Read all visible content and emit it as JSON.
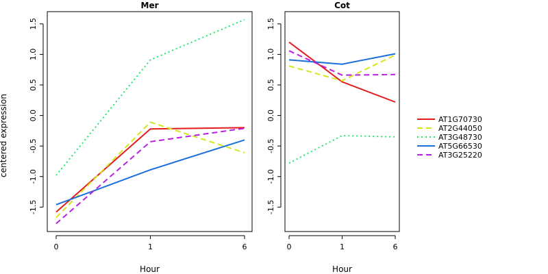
{
  "figure": {
    "ylabel": "centered expression",
    "xlabel": "Hour"
  },
  "legend": {
    "placement": "right",
    "items": [
      "AT1G70730",
      "AT2G44050",
      "AT3G48730",
      "AT5G66530",
      "AT3G25220"
    ]
  },
  "chart_data": [
    {
      "type": "line",
      "title": "Mer",
      "xlabel": "Hour",
      "ylabel": "centered expression",
      "categories": [
        "0",
        "1",
        "6"
      ],
      "ylim": [
        -1.9,
        1.7
      ],
      "yticks": [
        -1.5,
        -1.0,
        -0.5,
        0.0,
        0.5,
        1.0,
        1.5
      ],
      "ytick_labels": [
        "-1.5",
        "-1.0",
        "-0.5",
        "0.0",
        "0.5",
        "1.0",
        "1.5"
      ],
      "series": [
        {
          "name": "AT1G70730",
          "color": "#e41a1c",
          "dash": "solid",
          "values": [
            -1.58,
            -0.22,
            -0.2
          ]
        },
        {
          "name": "AT2G44050",
          "color": "#d4e61a",
          "dash": "dashed",
          "values": [
            -1.67,
            -0.11,
            -0.61
          ]
        },
        {
          "name": "AT3G48730",
          "color": "#1ee66a",
          "dash": "dotted",
          "values": [
            -0.98,
            0.91,
            1.57
          ]
        },
        {
          "name": "AT5G66530",
          "color": "#1a6edc",
          "dash": "solid",
          "values": [
            -1.46,
            -0.89,
            -0.4
          ]
        },
        {
          "name": "AT3G25220",
          "color": "#b91ee1",
          "dash": "dashed",
          "values": [
            -1.77,
            -0.43,
            -0.21
          ]
        }
      ]
    },
    {
      "type": "line",
      "title": "Cot",
      "xlabel": "Hour",
      "ylabel": "",
      "categories": [
        "0",
        "1",
        "6"
      ],
      "ylim": [
        -1.9,
        1.7
      ],
      "yticks": [
        -1.5,
        -1.0,
        -0.5,
        0.0,
        0.5,
        1.0,
        1.5
      ],
      "ytick_labels": [
        "-1.5",
        "-1.0",
        "-0.5",
        "0.0",
        "0.5",
        "1.0",
        "1.5"
      ],
      "series": [
        {
          "name": "AT1G70730",
          "color": "#e41a1c",
          "dash": "solid",
          "values": [
            1.2,
            0.55,
            0.22
          ]
        },
        {
          "name": "AT2G44050",
          "color": "#d4e61a",
          "dash": "dashed",
          "values": [
            0.81,
            0.57,
            0.99
          ]
        },
        {
          "name": "AT3G48730",
          "color": "#1ee66a",
          "dash": "dotted",
          "values": [
            -0.78,
            -0.33,
            -0.35
          ]
        },
        {
          "name": "AT5G66530",
          "color": "#1a6edc",
          "dash": "solid",
          "values": [
            0.91,
            0.84,
            1.01
          ]
        },
        {
          "name": "AT3G25220",
          "color": "#b91ee1",
          "dash": "dashed",
          "values": [
            1.06,
            0.66,
            0.67
          ]
        }
      ]
    }
  ]
}
